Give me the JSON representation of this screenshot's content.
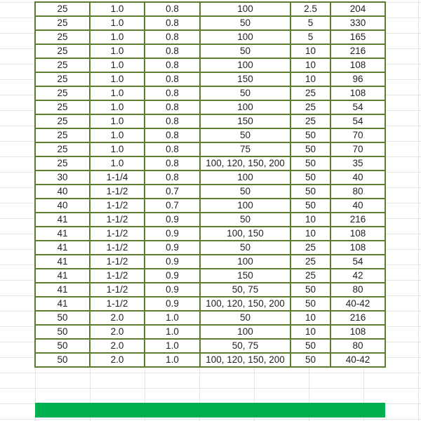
{
  "table": {
    "rows": [
      [
        "25",
        "1.0",
        "0.8",
        "100",
        "2.5",
        "204"
      ],
      [
        "25",
        "1.0",
        "0.8",
        "50",
        "5",
        "330"
      ],
      [
        "25",
        "1.0",
        "0.8",
        "100",
        "5",
        "165"
      ],
      [
        "25",
        "1.0",
        "0.8",
        "50",
        "10",
        "216"
      ],
      [
        "25",
        "1.0",
        "0.8",
        "100",
        "10",
        "108"
      ],
      [
        "25",
        "1.0",
        "0.8",
        "150",
        "10",
        "96"
      ],
      [
        "25",
        "1.0",
        "0.8",
        "50",
        "25",
        "108"
      ],
      [
        "25",
        "1.0",
        "0.8",
        "100",
        "25",
        "54"
      ],
      [
        "25",
        "1.0",
        "0.8",
        "150",
        "25",
        "54"
      ],
      [
        "25",
        "1.0",
        "0.8",
        "50",
        "50",
        "70"
      ],
      [
        "25",
        "1.0",
        "0.8",
        "75",
        "50",
        "70"
      ],
      [
        "25",
        "1.0",
        "0.8",
        "100, 120, 150, 200",
        "50",
        "35"
      ],
      [
        "30",
        "1-1/4",
        "0.8",
        "100",
        "50",
        "40"
      ],
      [
        "40",
        "1-1/2",
        "0.7",
        "50",
        "50",
        "80"
      ],
      [
        "40",
        "1-1/2",
        "0.7",
        "100",
        "50",
        "40"
      ],
      [
        "41",
        "1-1/2",
        "0.9",
        "50",
        "10",
        "216"
      ],
      [
        "41",
        "1-1/2",
        "0.9",
        "100, 150",
        "10",
        "108"
      ],
      [
        "41",
        "1-1/2",
        "0.9",
        "50",
        "25",
        "108"
      ],
      [
        "41",
        "1-1/2",
        "0.9",
        "100",
        "25",
        "54"
      ],
      [
        "41",
        "1-1/2",
        "0.9",
        "150",
        "25",
        "42"
      ],
      [
        "41",
        "1-1/2",
        "0.9",
        "50, 75",
        "50",
        "80"
      ],
      [
        "41",
        "1-1/2",
        "0.9",
        "100, 120, 150, 200",
        "50",
        "40-42"
      ],
      [
        "50",
        "2.0",
        "1.0",
        "50",
        "10",
        "216"
      ],
      [
        "50",
        "2.0",
        "1.0",
        "100",
        "10",
        "108"
      ],
      [
        "50",
        "2.0",
        "1.0",
        "50, 75",
        "50",
        "80"
      ],
      [
        "50",
        "2.0",
        "1.0",
        "100, 120, 150, 200",
        "50",
        "40-42"
      ]
    ]
  },
  "colors": {
    "border": "#5b7d2c",
    "footer_bar": "#00b050"
  }
}
